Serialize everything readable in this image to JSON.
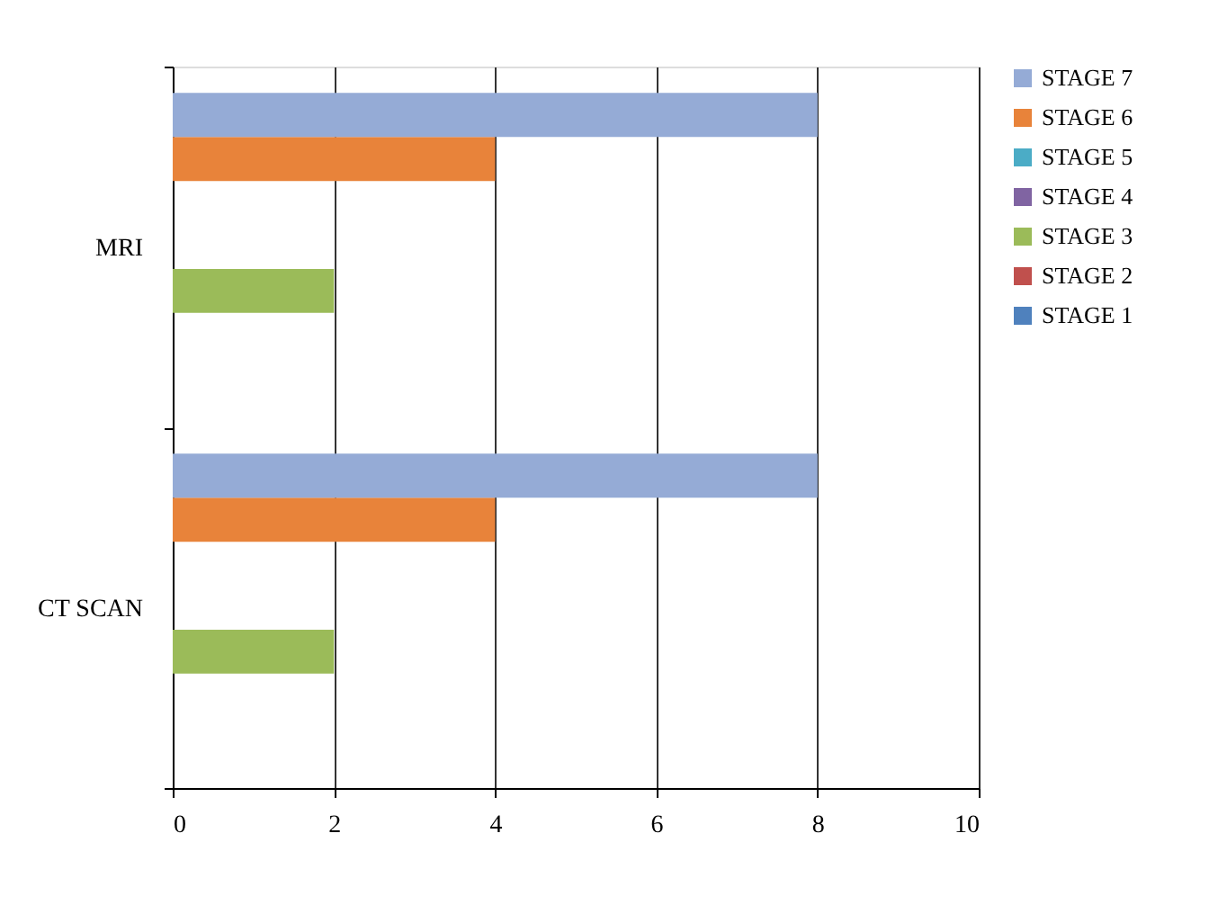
{
  "chart_data": {
    "type": "bar",
    "orientation": "horizontal",
    "categories": [
      "MRI",
      "CT SCAN"
    ],
    "series": [
      {
        "name": "STAGE 1",
        "color": "#4f81bd",
        "values": [
          0,
          0
        ]
      },
      {
        "name": "STAGE 2",
        "color": "#c0504d",
        "values": [
          0,
          0
        ]
      },
      {
        "name": "STAGE 3",
        "color": "#9bbb59",
        "values": [
          2,
          2
        ]
      },
      {
        "name": "STAGE 4",
        "color": "#8064a2",
        "values": [
          0,
          0
        ]
      },
      {
        "name": "STAGE 5",
        "color": "#4bacc6",
        "values": [
          0,
          0
        ]
      },
      {
        "name": "STAGE 6",
        "color": "#e8833a",
        "values": [
          4,
          4
        ]
      },
      {
        "name": "STAGE 7",
        "color": "#95abd6",
        "values": [
          8,
          8
        ]
      }
    ],
    "xlim": [
      0,
      10
    ],
    "xticks": [
      0,
      2,
      4,
      6,
      8,
      10
    ],
    "grid": "x",
    "legend": "right"
  }
}
